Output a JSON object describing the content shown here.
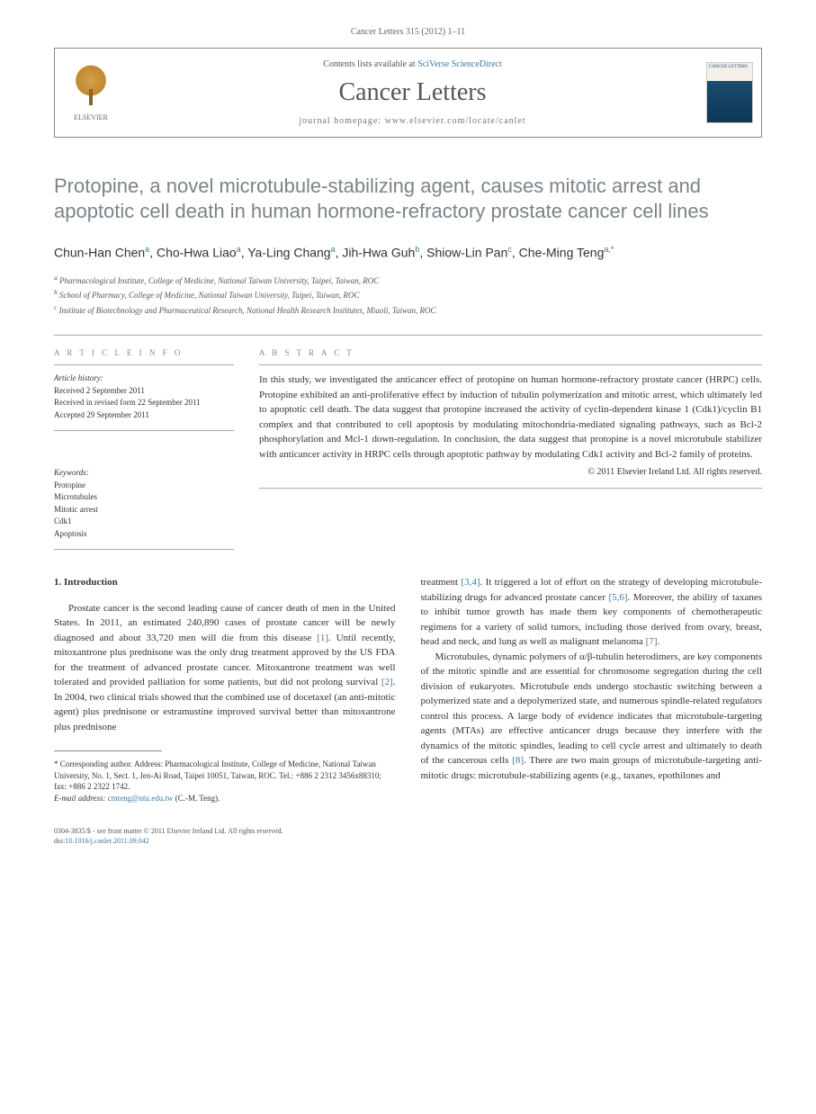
{
  "journal_cite": "Cancer Letters 315 (2012) 1–11",
  "header": {
    "contents_prefix": "Contents lists available at ",
    "contents_link": "SciVerse ScienceDirect",
    "journal_title": "Cancer Letters",
    "homepage_prefix": "journal homepage: ",
    "homepage": "www.elsevier.com/locate/canlet",
    "elsevier_label": "ELSEVIER",
    "cover_text": "CANCER LETTERS"
  },
  "title": "Protopine, a novel microtubule-stabilizing agent, causes mitotic arrest and apoptotic cell death in human hormone-refractory prostate cancer cell lines",
  "authors_html": "Chun-Han Chen<sup>a</sup>, Cho-Hwa Liao<sup>a</sup>, Ya-Ling Chang<sup>a</sup>, Jih-Hwa Guh<sup>b</sup>, Shiow-Lin Pan<sup>c</sup>, Che-Ming Teng<sup>a,*</sup>",
  "affiliations": {
    "a": "Pharmacological Institute, College of Medicine, National Taiwan University, Taipei, Taiwan, ROC",
    "b": "School of Pharmacy, College of Medicine, National Taiwan University, Taipei, Taiwan, ROC",
    "c": "Institute of Biotechnology and Pharmaceutical Research, National Health Research Institutes, Miaoli, Taiwan, ROC"
  },
  "info": {
    "heading": "A R T I C L E   I N F O",
    "history_label": "Article history:",
    "received": "Received 2 September 2011",
    "revised": "Received in revised form 22 September 2011",
    "accepted": "Accepted 29 September 2011",
    "keywords_label": "Keywords:",
    "keywords": [
      "Protopine",
      "Microtubules",
      "Mitotic arrest",
      "Cdk1",
      "Apoptosis"
    ]
  },
  "abstract": {
    "heading": "A B S T R A C T",
    "text": "In this study, we investigated the anticancer effect of protopine on human hormone-refractory prostate cancer (HRPC) cells. Protopine exhibited an anti-proliferative effect by induction of tubulin polymerization and mitotic arrest, which ultimately led to apoptotic cell death. The data suggest that protopine increased the activity of cyclin-dependent kinase 1 (Cdk1)/cyclin B1 complex and that contributed to cell apoptosis by modulating mitochondria-mediated signaling pathways, such as Bcl-2 phosphorylation and Mcl-1 down-regulation. In conclusion, the data suggest that protopine is a novel microtubule stabilizer with anticancer activity in HRPC cells through apoptotic pathway by modulating Cdk1 activity and Bcl-2 family of proteins.",
    "copyright": "© 2011 Elsevier Ireland Ltd. All rights reserved."
  },
  "intro": {
    "heading": "1. Introduction",
    "col1": "Prostate cancer is the second leading cause of cancer death of men in the United States. In 2011, an estimated 240,890 cases of prostate cancer will be newly diagnosed and about 33,720 men will die from this disease [1]. Until recently, mitoxantrone plus prednisone was the only drug treatment approved by the US FDA for the treatment of advanced prostate cancer. Mitoxantrone treatment was well tolerated and provided palliation for some patients, but did not prolong survival [2]. In 2004, two clinical trials showed that the combined use of docetaxel (an anti-mitotic agent) plus prednisone or estramustine improved survival better than mitoxantrone plus prednisone",
    "col2_p1": "treatment [3,4]. It triggered a lot of effort on the strategy of developing microtubule-stabilizing drugs for advanced prostate cancer [5,6]. Moreover, the ability of taxanes to inhibit tumor growth has made them key components of chemotherapeutic regimens for a variety of solid tumors, including those derived from ovary, breast, head and neck, and lung as well as malignant melanoma [7].",
    "col2_p2": "Microtubules, dynamic polymers of α/β-tubulin heterodimers, are key components of the mitotic spindle and are essential for chromosome segregation during the cell division of eukaryotes. Microtubule ends undergo stochastic switching between a polymerized state and a depolymerized state, and numerous spindle-related regulators control this process. A large body of evidence indicates that microtubule-targeting agents (MTAs) are effective anticancer drugs because they interfere with the dynamics of the mitotic spindles, leading to cell cycle arrest and ultimately to death of the cancerous cells [8]. There are two main groups of microtubule-targeting anti-mitotic drugs: microtubule-stabilizing agents (e.g., taxanes, epothilones and"
  },
  "footnotes": {
    "corresponding": "* Corresponding author. Address: Pharmacological Institute, College of Medicine, National Taiwan University, No. 1, Sect. 1, Jen-Ai Road, Taipei 10051, Taiwan, ROC. Tel.: +886 2 2312 3456x88310; fax: +886 2 2322 1742.",
    "email_label": "E-mail address:",
    "email": "cmteng@ntu.edu.tw",
    "email_suffix": "(C.-M. Teng)."
  },
  "bottom": {
    "front_matter": "0304-3835/$ - see front matter © 2011 Elsevier Ireland Ltd. All rights reserved.",
    "doi_label": "doi:",
    "doi": "10.1016/j.canlet.2011.09.042"
  },
  "colors": {
    "title_gray": "#7a8489",
    "link_blue": "#3b7aa5",
    "border": "#aaaaaa"
  }
}
